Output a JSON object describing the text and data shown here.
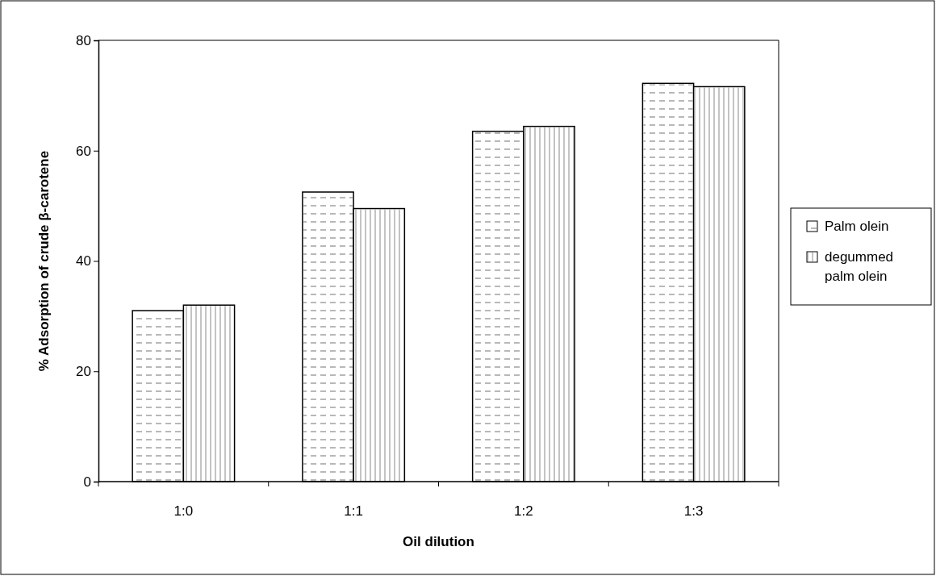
{
  "chart_data": {
    "type": "bar",
    "xlabel": "Oil dilution",
    "ylabel": "% Adsorption of crude β-carotene",
    "categories": [
      "1:0",
      "1:1",
      "1:2",
      "1:3"
    ],
    "series": [
      {
        "name": "Palm olein",
        "color": "#ffffff",
        "values": [
          31.0,
          52.5,
          63.5,
          72.2
        ]
      },
      {
        "name": "degummed palm olein",
        "color": "#ffffff",
        "values": [
          32.0,
          49.5,
          64.4,
          71.6
        ]
      }
    ],
    "ylim": [
      0,
      80
    ],
    "yticks": [
      0,
      20,
      40,
      60,
      80
    ],
    "grid": false,
    "legend": "right"
  }
}
